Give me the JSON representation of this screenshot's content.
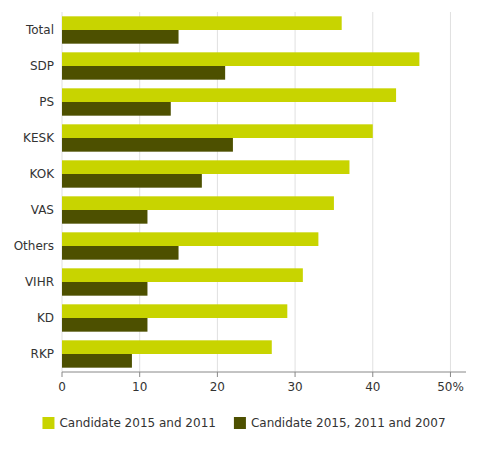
{
  "chart_data": {
    "type": "bar",
    "orientation": "horizontal",
    "categories": [
      "Total",
      "SDP",
      "PS",
      "KESK",
      "KOK",
      "VAS",
      "Others",
      "VIHR",
      "KD",
      "RKP"
    ],
    "series": [
      {
        "name": "Candidate 2015 and 2011",
        "color": "#c8d400",
        "values": [
          36,
          46,
          43,
          40,
          37,
          35,
          33,
          31,
          29,
          27
        ]
      },
      {
        "name": "Candidate 2015, 2011 and 2007",
        "color": "#4d5000",
        "values": [
          15,
          21,
          14,
          22,
          18,
          11,
          15,
          11,
          11,
          9
        ]
      }
    ],
    "xlim": [
      0,
      52
    ],
    "xticks": [
      0,
      10,
      20,
      30,
      40,
      {
        "value": 50,
        "label": "50%"
      }
    ],
    "grid": true,
    "legend": "bottom"
  }
}
